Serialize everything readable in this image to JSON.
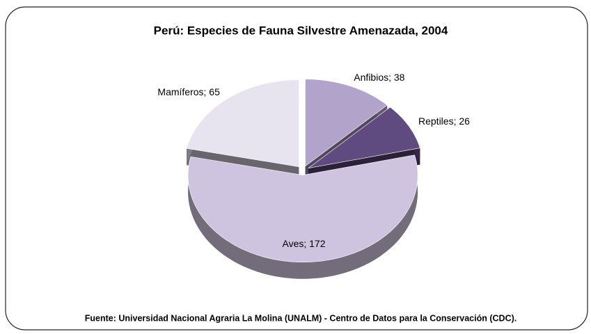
{
  "chart_data": {
    "type": "pie",
    "title": "Perú: Especies de Fauna Silvestre Amenazada, 2004",
    "values": [
      38,
      26,
      172,
      65
    ],
    "value_labels": [
      "Anfibios; 38",
      "Reptiles; 26",
      "Aves; 172",
      "Mamíferos; 65"
    ],
    "colors": [
      "#b2a3cb",
      "#5f4b80",
      "#cfc4df",
      "#e7e3ef"
    ],
    "source": "Fuente: Universidad Nacional Agraria La Molina (UNALM) - Centro de Datos para la Conservación (CDC)."
  }
}
